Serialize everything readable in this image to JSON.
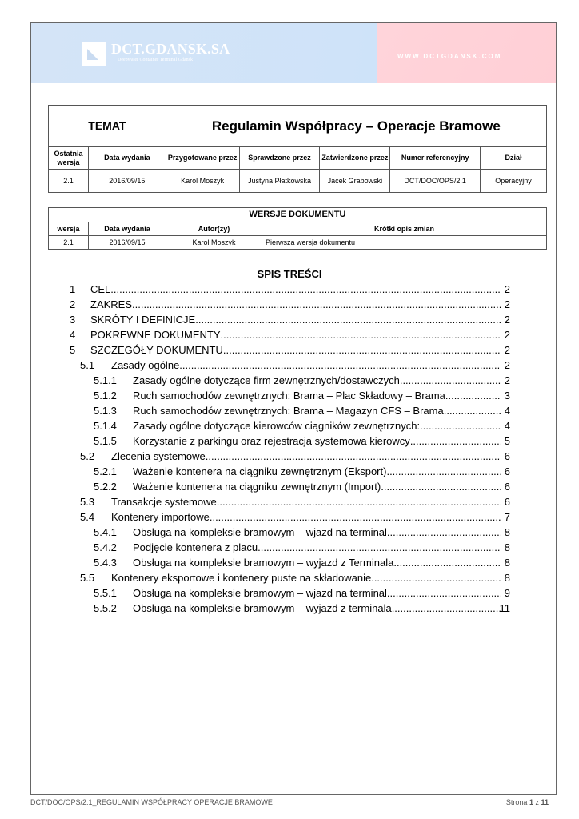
{
  "header": {
    "logo_name": "DCT.GDANSK.SA",
    "logo_tagline": "Deepwater Container Terminal Gdansk",
    "url": "WWW.DCTGDANSK.COM"
  },
  "meta_table": {
    "topic_label": "TEMAT",
    "title": "Regulamin Współpracy – Operacje Bramowe",
    "headers": [
      "Ostatnia wersja",
      "Data wydania",
      "Przygotowane przez",
      "Sprawdzone przez",
      "Zatwierdzone przez",
      "Numer referencyjny",
      "Dział"
    ],
    "values": [
      "2.1",
      "2016/09/15",
      "Karol Moszyk",
      "Justyna Płatkowska",
      "Jacek Grabowski",
      "DCT/DOC/OPS/2.1",
      "Operacyjny"
    ]
  },
  "versions_table": {
    "title": "WERSJE DOKUMENTU",
    "headers": [
      "wersja",
      "Data wydania",
      "Autor(zy)",
      "Krótki opis zmian"
    ],
    "rows": [
      [
        "2.1",
        "2016/09/15",
        "Karol Moszyk",
        "Pierwsza wersja dokumentu"
      ]
    ]
  },
  "toc": {
    "title": "SPIS TREŚCI",
    "items": [
      {
        "level": 1,
        "num": "1",
        "text": "CEL",
        "page": "2"
      },
      {
        "level": 1,
        "num": "2",
        "text": "ZAKRES",
        "page": "2"
      },
      {
        "level": 1,
        "num": "3",
        "text": "SKRÓTY I DEFINICJE",
        "page": "2"
      },
      {
        "level": 1,
        "num": "4",
        "text": "POKREWNE DOKUMENTY",
        "page": "2"
      },
      {
        "level": 1,
        "num": "5",
        "text": "SZCZEGÓŁY DOKUMENTU",
        "page": "2"
      },
      {
        "level": 2,
        "num": "5.1",
        "text": "Zasady ogólne",
        "page": "2"
      },
      {
        "level": 3,
        "num": "5.1.1",
        "text": "Zasady ogólne dotyczące firm zewnętrznych/dostawczych",
        "page": "2"
      },
      {
        "level": 3,
        "num": "5.1.2",
        "text": "Ruch samochodów zewnętrznych: Brama – Plac Składowy – Brama",
        "page": "3"
      },
      {
        "level": 3,
        "num": "5.1.3",
        "text": "Ruch samochodów zewnętrznych: Brama – Magazyn CFS – Brama",
        "page": "4"
      },
      {
        "level": 3,
        "num": "5.1.4",
        "text": "Zasady ogólne dotyczące kierowców ciągników zewnętrznych:",
        "page": "4"
      },
      {
        "level": 3,
        "num": "5.1.5",
        "text": "Korzystanie z parkingu oraz rejestracja systemowa kierowcy",
        "page": "5"
      },
      {
        "level": 2,
        "num": "5.2",
        "text": "Zlecenia systemowe",
        "page": "6"
      },
      {
        "level": 3,
        "num": "5.2.1",
        "text": "Ważenie kontenera na ciągniku zewnętrznym (Eksport)",
        "page": "6"
      },
      {
        "level": 3,
        "num": "5.2.2",
        "text": "Ważenie kontenera na ciągniku zewnętrznym (Import)",
        "page": "6"
      },
      {
        "level": 2,
        "num": "5.3",
        "text": "Transakcje systemowe",
        "page": "6"
      },
      {
        "level": 2,
        "num": "5.4",
        "text": "Kontenery importowe",
        "page": "7"
      },
      {
        "level": 3,
        "num": "5.4.1",
        "text": "Obsługa na kompleksie bramowym – wjazd na terminal",
        "page": "8"
      },
      {
        "level": 3,
        "num": "5.4.2",
        "text": "Podjęcie kontenera z placu",
        "page": "8"
      },
      {
        "level": 3,
        "num": "5.4.3",
        "text": "Obsługa na kompleksie bramowym – wyjazd z Terminala",
        "page": "8"
      },
      {
        "level": 2,
        "num": "5.5",
        "text": "Kontenery eksportowe i kontenery puste na składowanie",
        "page": "8"
      },
      {
        "level": 3,
        "num": "5.5.1",
        "text": "Obsługa na kompleksie bramowym – wjazd na terminal",
        "page": "9"
      },
      {
        "level": 3,
        "num": "5.5.2",
        "text": "Obsługa na kompleksie bramowym – wyjazd z terminala",
        "page": "11"
      }
    ]
  },
  "footer": {
    "doc_ref": "DCT/DOC/OPS/2.1_REGULAMIN WSPÓŁPRACY OPERACJE BRAMOWE",
    "page_label": "Strona",
    "page": "1",
    "of_label": "z",
    "total": "11"
  }
}
